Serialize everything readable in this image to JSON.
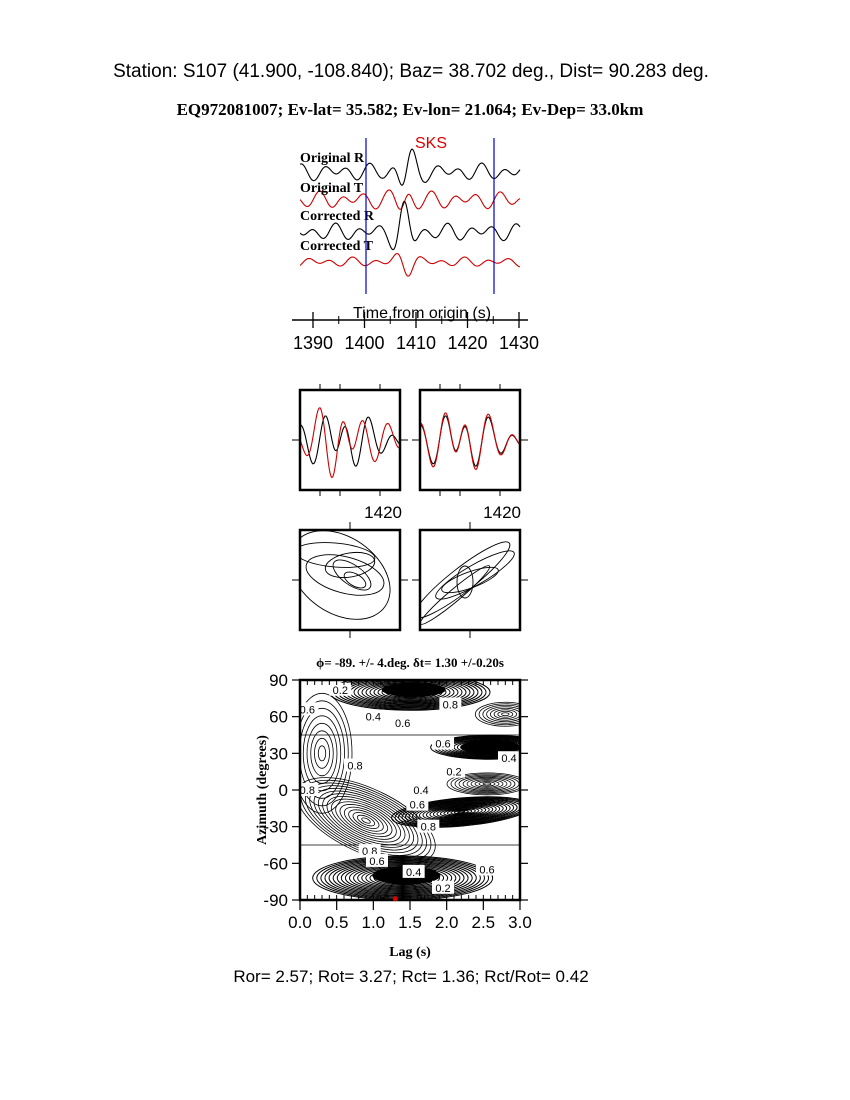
{
  "header": {
    "station_line": "Station: S107 (41.900, -108.840); Baz=   38.702 deg., Dist=   90.283 deg.",
    "event_line": "EQ972081007; Ev-lat=  35.582; Ev-lon=  21.064; Ev-Dep= 33.0km"
  },
  "colors": {
    "original": "#000000",
    "transverse": "#cc0000",
    "window": "#0000cc",
    "phase": "#dd0000",
    "best_fit": "#dd0000"
  },
  "chart_data": [
    {
      "type": "line",
      "phase_label": "SKS",
      "trace_labels": [
        "Original R",
        "Original T",
        "Corrected R",
        "Corrected T"
      ],
      "xlabel": "Time from origin (s)",
      "xticks": [
        "1390",
        "1400",
        "1410",
        "1420",
        "1430"
      ],
      "xlim": [
        1388,
        1430
      ],
      "window": [
        1400,
        1425
      ]
    },
    {
      "type": "line",
      "panels": [
        {
          "tick_label": "1420"
        },
        {
          "tick_label": "1420"
        }
      ]
    },
    {
      "type": "heatmap",
      "title": "ϕ= -89. +/- 4.deg. δt= 1.30 +/-0.20s",
      "xlabel": "Lag (s)",
      "ylabel": "Azimuth (degrees)",
      "xlim": [
        0,
        3
      ],
      "ylim": [
        -90,
        90
      ],
      "xticks": [
        "0.0",
        "0.5",
        "1.0",
        "1.5",
        "2.0",
        "2.5",
        "3.0"
      ],
      "yticks": [
        "90",
        "60",
        "30",
        "0",
        "-30",
        "-60",
        "-90"
      ],
      "best_fit": {
        "lag": 1.3,
        "azimuth": -89
      },
      "contour_labels": [
        {
          "text": "0.2",
          "lag": 0.55,
          "azimuth": 82
        },
        {
          "text": "0.6",
          "lag": 0.1,
          "azimuth": 66
        },
        {
          "text": "0.4",
          "lag": 1.0,
          "azimuth": 60
        },
        {
          "text": "0.6",
          "lag": 1.4,
          "azimuth": 55
        },
        {
          "text": "0.8",
          "lag": 2.05,
          "azimuth": 70
        },
        {
          "text": "0.6",
          "lag": 1.95,
          "azimuth": 38
        },
        {
          "text": "0.4",
          "lag": 2.85,
          "azimuth": 26
        },
        {
          "text": "0.2",
          "lag": 2.1,
          "azimuth": 15
        },
        {
          "text": "0.8",
          "lag": 0.75,
          "azimuth": 20
        },
        {
          "text": "0.8",
          "lag": 0.1,
          "azimuth": 0
        },
        {
          "text": "0.4",
          "lag": 1.65,
          "azimuth": 0
        },
        {
          "text": "0.6",
          "lag": 1.6,
          "azimuth": -12
        },
        {
          "text": "0.8",
          "lag": 1.75,
          "azimuth": -30
        },
        {
          "text": "0.8",
          "lag": 0.95,
          "azimuth": -50
        },
        {
          "text": "0.6",
          "lag": 1.05,
          "azimuth": -58
        },
        {
          "text": "0.4",
          "lag": 1.55,
          "azimuth": -67
        },
        {
          "text": "0.6",
          "lag": 2.55,
          "azimuth": -65
        },
        {
          "text": "0.2",
          "lag": 1.95,
          "azimuth": -80
        }
      ]
    }
  ],
  "footer": {
    "ratios_line": "Ror= 2.57; Rot= 3.27; Rct= 1.36; Rct/Rot= 0.42"
  }
}
